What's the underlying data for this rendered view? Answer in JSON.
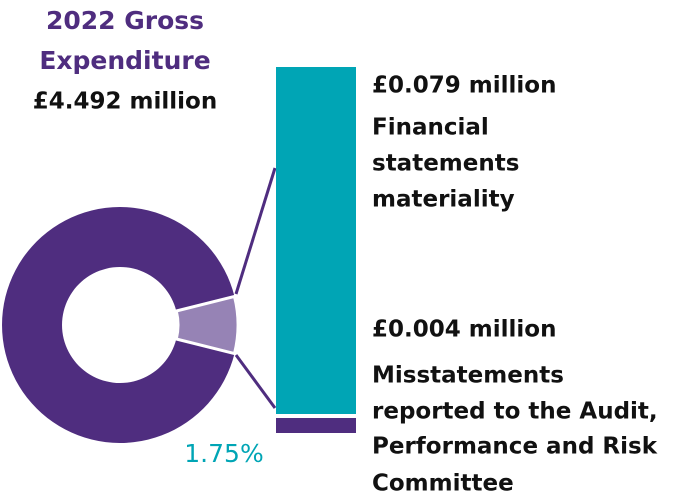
{
  "title": {
    "line1": "2022 Gross",
    "line2": "Expenditure",
    "amount": "£4.492 million"
  },
  "materiality": {
    "amount": "£0.079 million",
    "lines": [
      "Financial",
      "statements",
      "materiality"
    ]
  },
  "misstatements": {
    "amount": "£0.004 million",
    "lines": [
      "Misstatements",
      "reported to the Audit,",
      "Performance and Risk",
      "Committee"
    ]
  },
  "share_label": "1.75%"
}
